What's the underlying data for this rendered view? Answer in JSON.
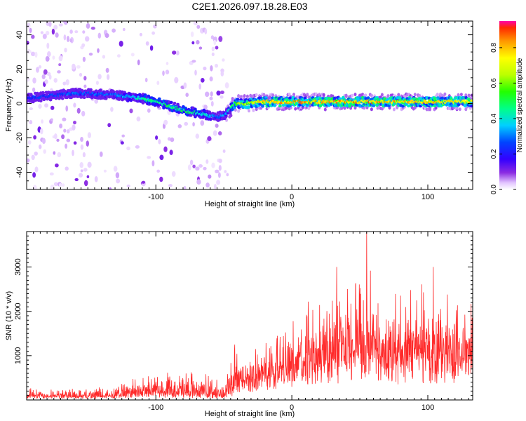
{
  "title": "C2E1.2026.097.18.28.E03",
  "colors": {
    "snr_line": "#ff2a2a",
    "axis": "#000000",
    "background": "#ffffff"
  },
  "chart_data": [
    {
      "type": "heatmap",
      "name": "spectrogram",
      "xlabel": "Height of straight line (km)",
      "ylabel": "Frequency (Hz)",
      "xlim": [
        -195,
        133
      ],
      "ylim": [
        -50,
        48
      ],
      "xticks": [
        -100,
        0,
        100
      ],
      "yticks": [
        -40,
        -20,
        0,
        20,
        40
      ],
      "colorbar": {
        "label": "Normalized spectral amplitude",
        "range": [
          0.0,
          0.95
        ],
        "ticks": [
          0.0,
          0.2,
          0.4,
          0.6,
          0.8
        ],
        "colormap": "rainbow (purple to red)"
      },
      "signal_track": {
        "description": "Frequency of peak spectral amplitude vs height",
        "height_km": [
          -195,
          -160,
          -130,
          -110,
          -95,
          -80,
          -65,
          -55,
          -48,
          -42,
          -35,
          -20,
          0,
          30,
          60,
          90,
          110,
          133
        ],
        "frequency_hz": [
          3,
          6,
          5,
          3,
          0,
          -4,
          -6,
          -8,
          -6,
          0,
          0,
          1,
          1,
          1,
          1,
          1,
          1,
          1
        ],
        "amplitude": [
          0.25,
          0.3,
          0.3,
          0.45,
          0.5,
          0.5,
          0.45,
          0.3,
          0.35,
          0.6,
          0.7,
          0.8,
          0.85,
          0.85,
          0.85,
          0.8,
          0.8,
          0.8
        ]
      },
      "noise_region_km": [
        -195,
        -48
      ]
    },
    {
      "type": "line",
      "name": "snr",
      "xlabel": "Height of straight line (km)",
      "ylabel": "SNR (10 * v/v)",
      "xlim": [
        -195,
        133
      ],
      "ylim": [
        0,
        3800
      ],
      "xticks": [
        -100,
        0,
        100
      ],
      "yticks": [
        1000,
        2000,
        3000
      ],
      "envelope": {
        "height_km": [
          -195,
          -130,
          -120,
          -100,
          -80,
          -60,
          -50,
          -42,
          -35,
          -20,
          -5,
          0,
          20,
          30,
          40,
          55,
          60,
          80,
          95,
          100,
          120,
          133
        ],
        "baseline": [
          80,
          80,
          100,
          180,
          140,
          120,
          100,
          300,
          500,
          650,
          800,
          900,
          1000,
          1100,
          1100,
          1200,
          1200,
          1150,
          1100,
          1150,
          1150,
          1200
        ],
        "peak": [
          300,
          300,
          500,
          700,
          700,
          600,
          400,
          1300,
          1000,
          1500,
          2100,
          2000,
          2500,
          3000,
          2800,
          3800,
          2600,
          2600,
          3000,
          2400,
          2500,
          2700
        ]
      },
      "notable_peaks": [
        {
          "height_km": 55,
          "snr": 3800
        },
        {
          "height_km": 33,
          "snr": 3000
        },
        {
          "height_km": 104,
          "snr": 3000
        },
        {
          "height_km": -42,
          "snr": 1250
        }
      ]
    }
  ]
}
